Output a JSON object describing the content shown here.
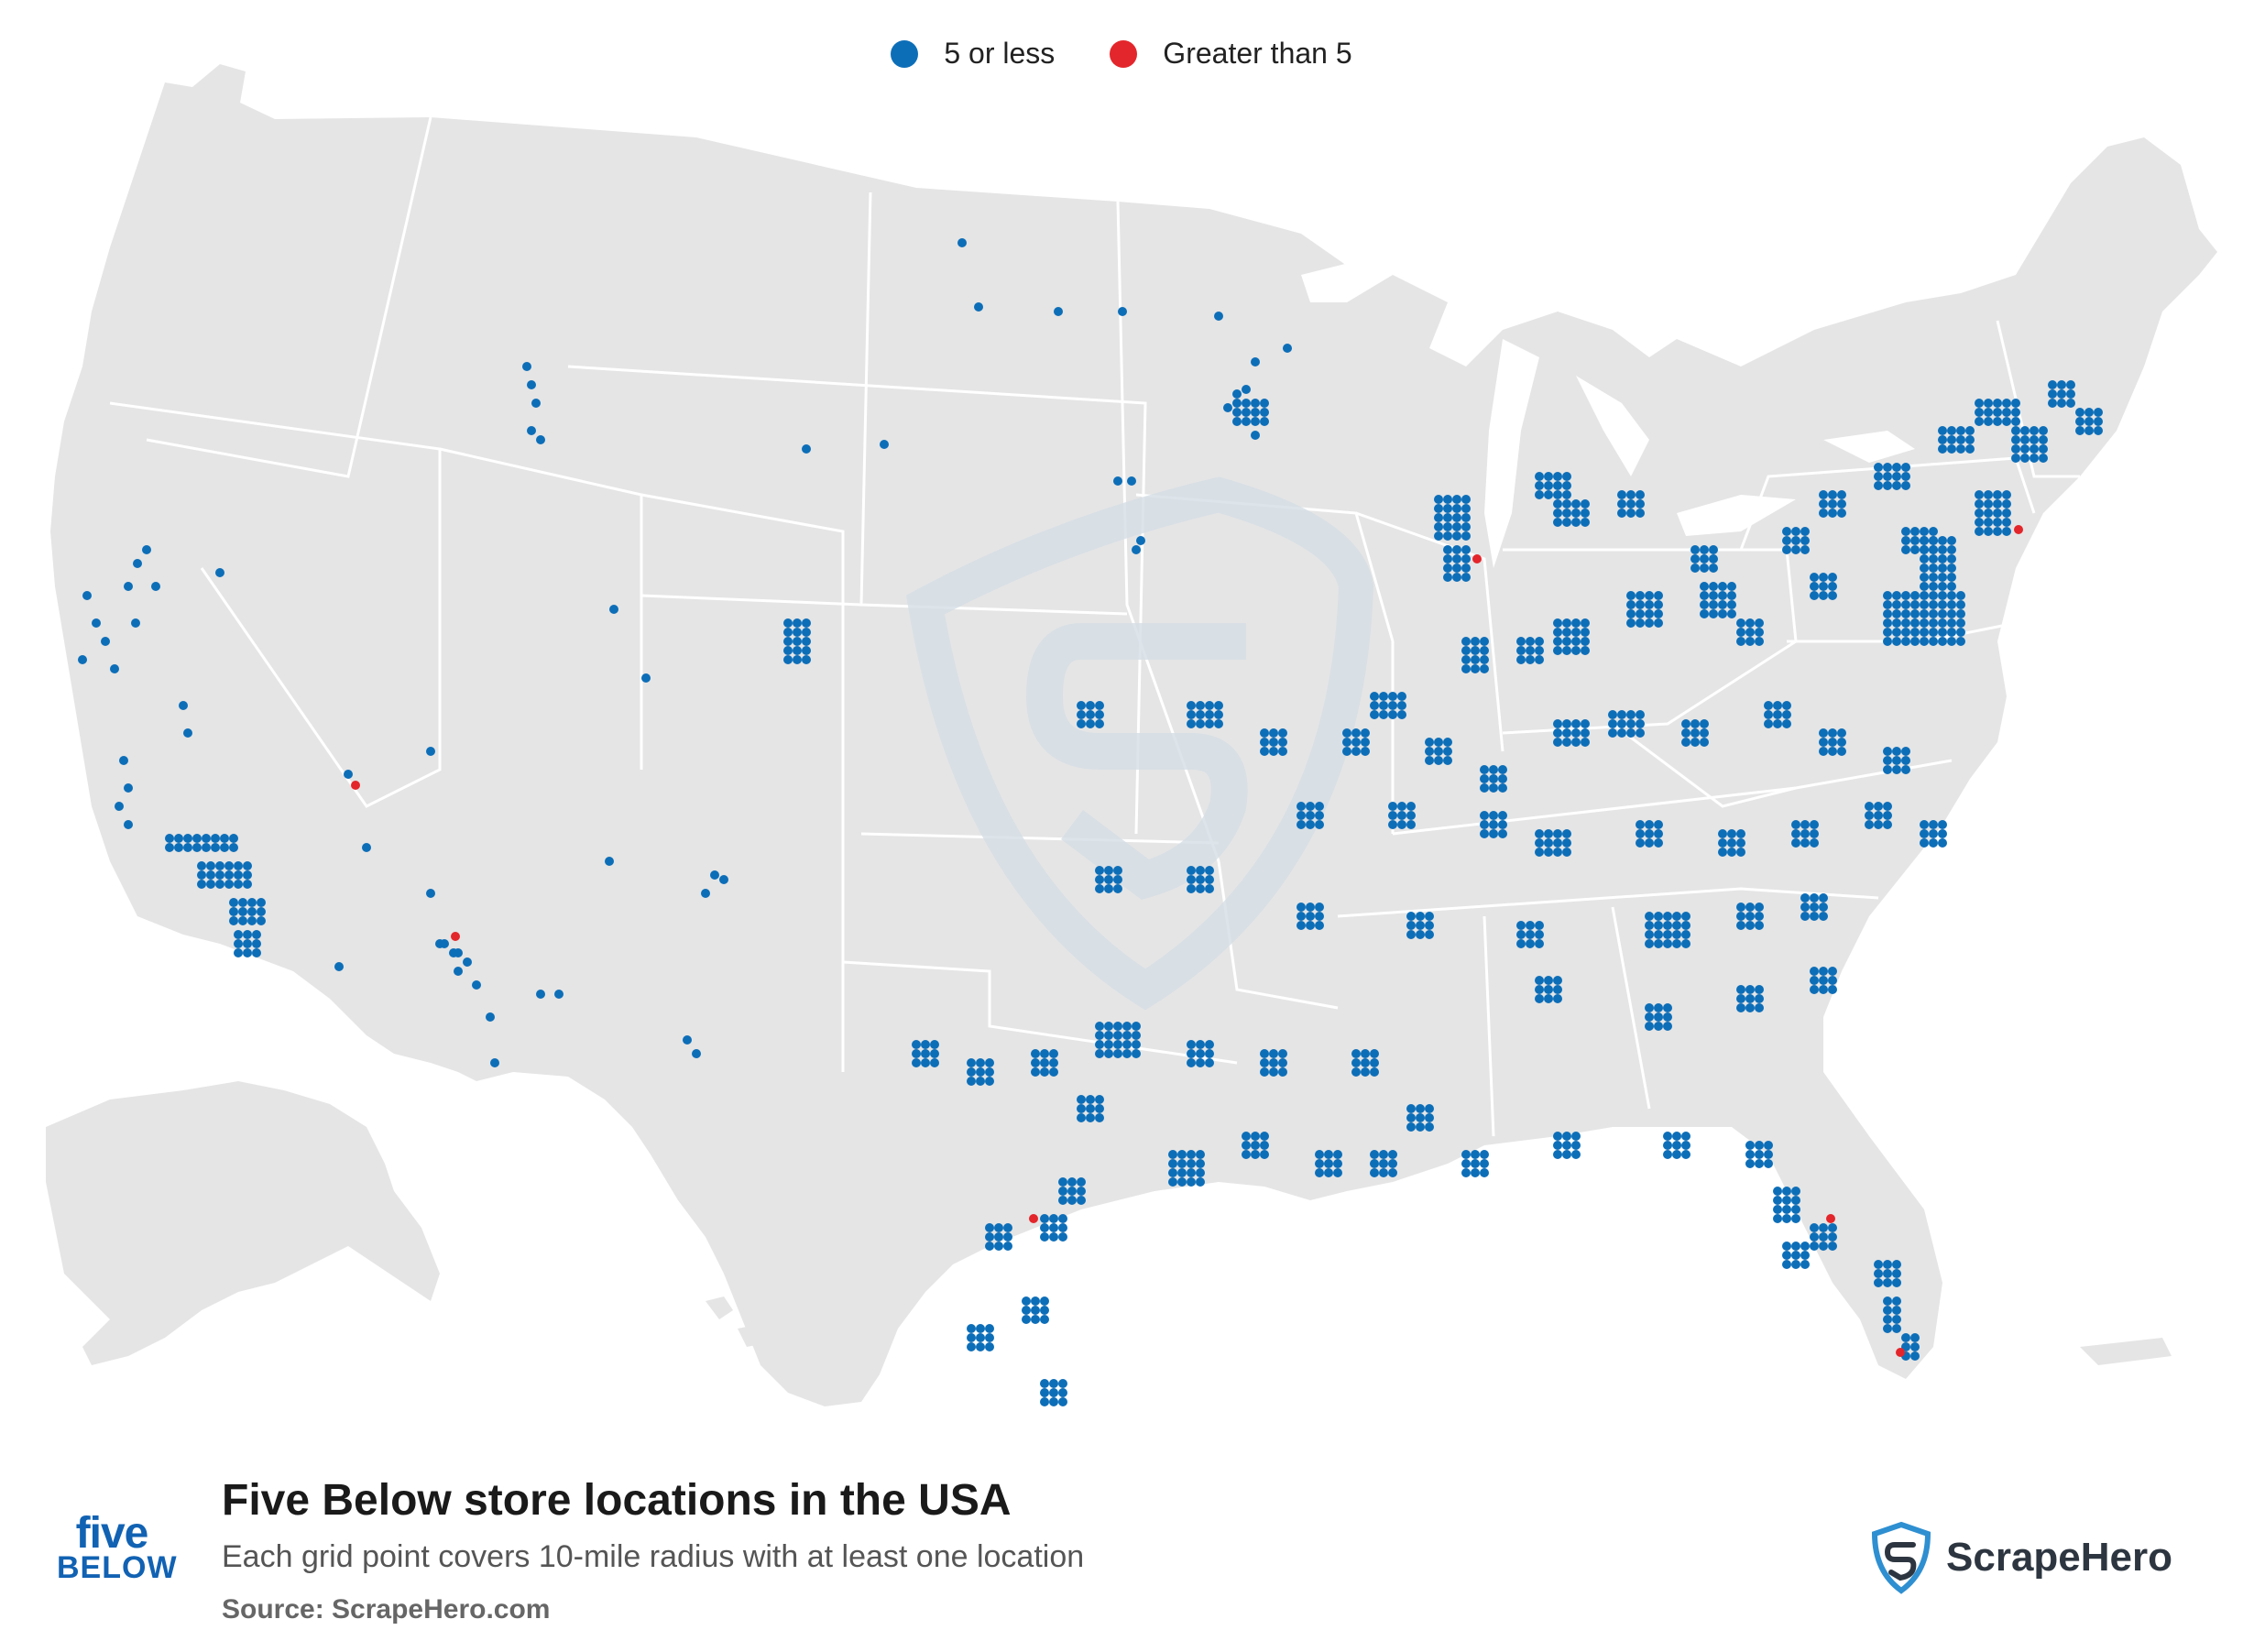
{
  "legend": {
    "items": [
      {
        "label": "5 or less",
        "color": "#0d6eb8"
      },
      {
        "label": "Greater than 5",
        "color": "#e3262b"
      }
    ]
  },
  "colors": {
    "land": "#e5e5e5",
    "state_border": "#ffffff",
    "watermark": "#d5dee6",
    "small_dot": "#0d6eb8",
    "large_dot": "#e3262b"
  },
  "footer": {
    "title": "Five Below store locations in the USA",
    "subtitle": "Each grid point covers 10-mile radius with at least one location",
    "source": "Source: ScrapeHero.com",
    "brand_logo_top": "five",
    "brand_logo_bottom": "BELOW",
    "publisher": "ScrapeHero"
  },
  "icons": {
    "brand_logo": "five-below-logo",
    "publisher_logo": "scrapehero-shield-icon"
  }
}
